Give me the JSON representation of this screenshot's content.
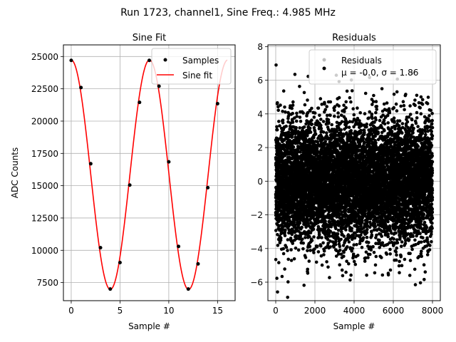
{
  "figure": {
    "title": "Run 1723, channel1, Sine Freq.: 4.985 MHz"
  },
  "chart_data": [
    {
      "type": "scatter",
      "title": "Sine Fit",
      "xlabel": "Sample #",
      "ylabel": "ADC Counts",
      "xlim": [
        -0.8,
        16.8
      ],
      "ylim": [
        6100,
        25900
      ],
      "xticks": [
        0,
        5,
        10,
        15
      ],
      "xtick_labels": [
        "0",
        "5",
        "10",
        "15"
      ],
      "yticks": [
        7500,
        10000,
        12500,
        15000,
        17500,
        20000,
        22500,
        25000
      ],
      "ytick_labels": [
        "7500",
        "10000",
        "12500",
        "15000",
        "17500",
        "20000",
        "22500",
        "25000"
      ],
      "grid": true,
      "legend": "top-right",
      "series": [
        {
          "name": "Samples",
          "kind": "points",
          "color": "#000000",
          "x": [
            0,
            1,
            2,
            3,
            4,
            5,
            6,
            7,
            8,
            9,
            10,
            11,
            12,
            13,
            14,
            15
          ],
          "y": [
            24700,
            22600,
            16700,
            10200,
            7000,
            9050,
            15050,
            21450,
            24700,
            22700,
            16850,
            10300,
            7000,
            8950,
            14850,
            21350
          ]
        },
        {
          "name": "Sine fit",
          "kind": "line",
          "color": "#ff0000",
          "model": {
            "offset": 15850,
            "amplitude": 8880,
            "period": 8.02,
            "phase_x": 0.0
          },
          "x_range": [
            0,
            16
          ]
        }
      ]
    },
    {
      "type": "scatter",
      "title": "Residuals",
      "xlabel": "Sample #",
      "ylabel": "",
      "xlim": [
        -400,
        8400
      ],
      "ylim": [
        -7.1,
        8.1
      ],
      "xticks": [
        0,
        2000,
        4000,
        6000,
        8000
      ],
      "xtick_labels": [
        "0",
        "2000",
        "4000",
        "6000",
        "8000"
      ],
      "yticks": [
        -6,
        -4,
        -2,
        0,
        2,
        4,
        6,
        8
      ],
      "ytick_labels": [
        "−6",
        "−4",
        "−2",
        "0",
        "2",
        "4",
        "6",
        "8"
      ],
      "grid": true,
      "legend": "top-right",
      "series": [
        {
          "name": "Residuals",
          "kind": "points",
          "color": "#000000",
          "n_points": 8000,
          "x_range": [
            0,
            8000
          ],
          "mean": 0.0,
          "sigma": 1.86
        }
      ],
      "stats_label": "μ = -0.0, σ = 1.86"
    }
  ]
}
